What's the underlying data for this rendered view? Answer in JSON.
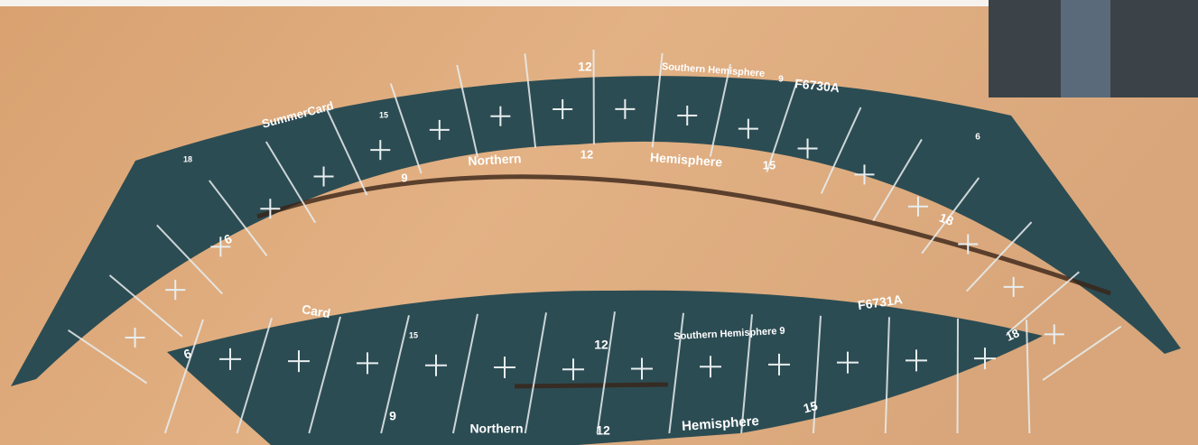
{
  "cards": [
    {
      "labels": [
        "12",
        "Southern Hemisphere",
        "9",
        "F6730A",
        "SummerCard",
        "15",
        "18",
        "6",
        "Northern",
        "12",
        "Hemisphere",
        "15",
        "9",
        "6",
        "18"
      ]
    },
    {
      "labels": [
        "Card",
        "6",
        "15",
        "12",
        "Southern Hemisphere 9",
        "F6731A",
        "18",
        "9",
        "Northern",
        "12",
        "Hemisphere",
        "15"
      ]
    }
  ]
}
